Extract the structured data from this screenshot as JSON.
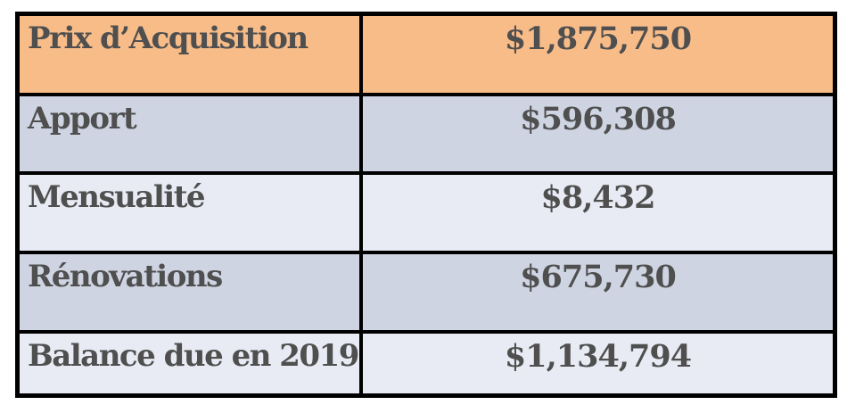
{
  "page": {
    "background_color": "#ffffff",
    "text_color": "#4f4f4f",
    "border_color": "#000000"
  },
  "table": {
    "row_colors": {
      "accent_row_bg": "#f8bc88",
      "band_dark_bg": "#cfd4e2",
      "band_light_bg": "#e8ebf3"
    },
    "rows": [
      {
        "label": "Prix d’Acquisition",
        "value": "$1,875,750"
      },
      {
        "label": "Apport",
        "value": "$596,308"
      },
      {
        "label": "Mensualité",
        "value": "$8,432"
      },
      {
        "label": "Rénovations",
        "value": "$675,730"
      },
      {
        "label": "Balance due en 2019",
        "value": "$1,134,794"
      }
    ]
  },
  "chart_data": {
    "type": "table",
    "categories": [
      "Prix d’Acquisition",
      "Apport",
      "Mensualité",
      "Rénovations",
      "Balance due en 2019"
    ],
    "values": [
      1875750,
      596308,
      8432,
      675730,
      1134794
    ],
    "title": "",
    "xlabel": "",
    "ylabel": ""
  }
}
